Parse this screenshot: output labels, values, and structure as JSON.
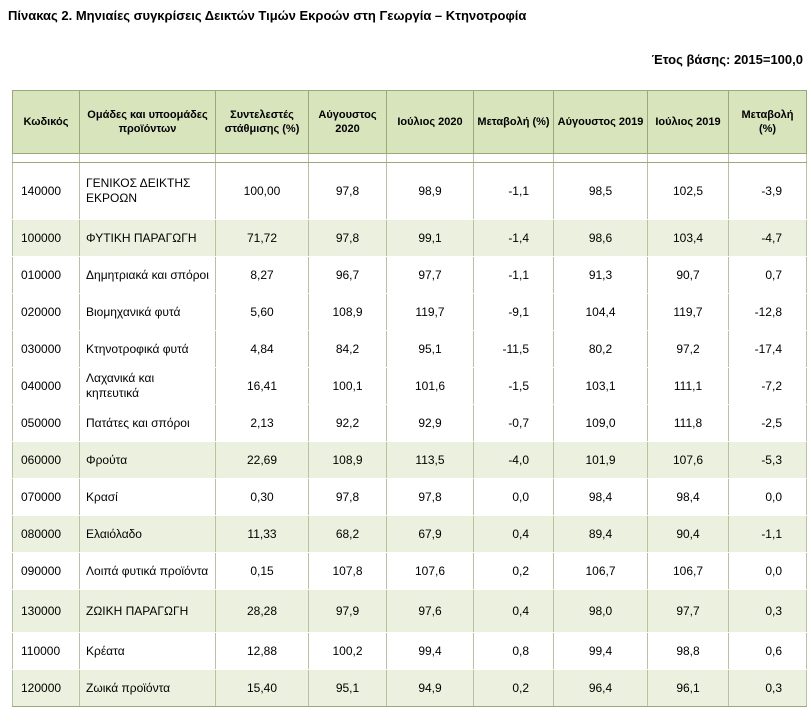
{
  "title": "Πίνακας 2. Μηνιαίες συγκρίσεις Δεικτών Τιμών Εκροών στη Γεωργία – Κτηνοτροφία",
  "base_year": "Έτος βάσης: 2015=100,0",
  "headers": {
    "code": "Κωδικός",
    "group": "Ομάδες και υποομάδες προϊόντων",
    "weight": "Συντελεστές στάθμισης (%)",
    "aug2020": "Αύγουστος 2020",
    "jul2020": "Ιούλιος 2020",
    "chg2020": "Μεταβολή (%)",
    "aug2019": "Αύγουστος 2019",
    "jul2019": "Ιούλιος 2019",
    "chg2019": "Μεταβολή (%)"
  },
  "rows": [
    {
      "code": "140000",
      "group": "ΓΕΝΙΚΟΣ ΔΕΙΚΤΗΣ ΕΚΡΟΩΝ",
      "weight": "100,00",
      "aug2020": "97,8",
      "jul2020": "98,9",
      "chg2020": "-1,1",
      "aug2019": "98,5",
      "jul2019": "102,5",
      "chg2019": "-3,9"
    },
    {
      "code": "100000",
      "group": "ΦΥΤΙΚΗ ΠΑΡΑΓΩΓΗ",
      "weight": "71,72",
      "aug2020": "97,8",
      "jul2020": "99,1",
      "chg2020": "-1,4",
      "aug2019": "98,6",
      "jul2019": "103,4",
      "chg2019": "-4,7"
    },
    {
      "code": "010000",
      "group": "Δημητριακά και σπόροι",
      "weight": "8,27",
      "aug2020": "96,7",
      "jul2020": "97,7",
      "chg2020": "-1,1",
      "aug2019": "91,3",
      "jul2019": "90,7",
      "chg2019": "0,7"
    },
    {
      "code": "020000",
      "group": "Βιομηχανικά φυτά",
      "weight": "5,60",
      "aug2020": "108,9",
      "jul2020": "119,7",
      "chg2020": "-9,1",
      "aug2019": "104,4",
      "jul2019": "119,7",
      "chg2019": "-12,8"
    },
    {
      "code": "030000",
      "group": "Κτηνοτροφικά φυτά",
      "weight": "4,84",
      "aug2020": "84,2",
      "jul2020": "95,1",
      "chg2020": "-11,5",
      "aug2019": "80,2",
      "jul2019": "97,2",
      "chg2019": "-17,4"
    },
    {
      "code": "040000",
      "group": "Λαχανικά και κηπευτικά",
      "weight": "16,41",
      "aug2020": "100,1",
      "jul2020": "101,6",
      "chg2020": "-1,5",
      "aug2019": "103,1",
      "jul2019": "111,1",
      "chg2019": "-7,2"
    },
    {
      "code": "050000",
      "group": "Πατάτες και σπόροι",
      "weight": "2,13",
      "aug2020": "92,2",
      "jul2020": "92,9",
      "chg2020": "-0,7",
      "aug2019": "109,0",
      "jul2019": "111,8",
      "chg2019": "-2,5"
    },
    {
      "code": "060000",
      "group": "Φρούτα",
      "weight": "22,69",
      "aug2020": "108,9",
      "jul2020": "113,5",
      "chg2020": "-4,0",
      "aug2019": "101,9",
      "jul2019": "107,6",
      "chg2019": "-5,3"
    },
    {
      "code": "070000",
      "group": "Κρασί",
      "weight": "0,30",
      "aug2020": "97,8",
      "jul2020": "97,8",
      "chg2020": "0,0",
      "aug2019": "98,4",
      "jul2019": "98,4",
      "chg2019": "0,0"
    },
    {
      "code": "080000",
      "group": "Ελαιόλαδο",
      "weight": "11,33",
      "aug2020": "68,2",
      "jul2020": "67,9",
      "chg2020": "0,4",
      "aug2019": "89,4",
      "jul2019": "90,4",
      "chg2019": "-1,1"
    },
    {
      "code": "090000",
      "group": "Λοιπά φυτικά προϊόντα",
      "weight": "0,15",
      "aug2020": "107,8",
      "jul2020": "107,6",
      "chg2020": "0,2",
      "aug2019": "106,7",
      "jul2019": "106,7",
      "chg2019": "0,0"
    },
    {
      "code": "130000",
      "group": "ΖΩΙΚΗ ΠΑΡΑΓΩΓΗ",
      "weight": "28,28",
      "aug2020": "97,9",
      "jul2020": "97,6",
      "chg2020": "0,4",
      "aug2019": "98,0",
      "jul2019": "97,7",
      "chg2019": "0,3"
    },
    {
      "code": "110000",
      "group": "Κρέατα",
      "weight": "12,88",
      "aug2020": "100,2",
      "jul2020": "99,4",
      "chg2020": "0,8",
      "aug2019": "99,4",
      "jul2019": "98,8",
      "chg2019": "0,6"
    },
    {
      "code": "120000",
      "group": "Ζωικά προϊόντα",
      "weight": "15,40",
      "aug2020": "95,1",
      "jul2020": "94,9",
      "chg2020": "0,2",
      "aug2019": "96,4",
      "jul2019": "96,1",
      "chg2019": "0,3"
    }
  ]
}
